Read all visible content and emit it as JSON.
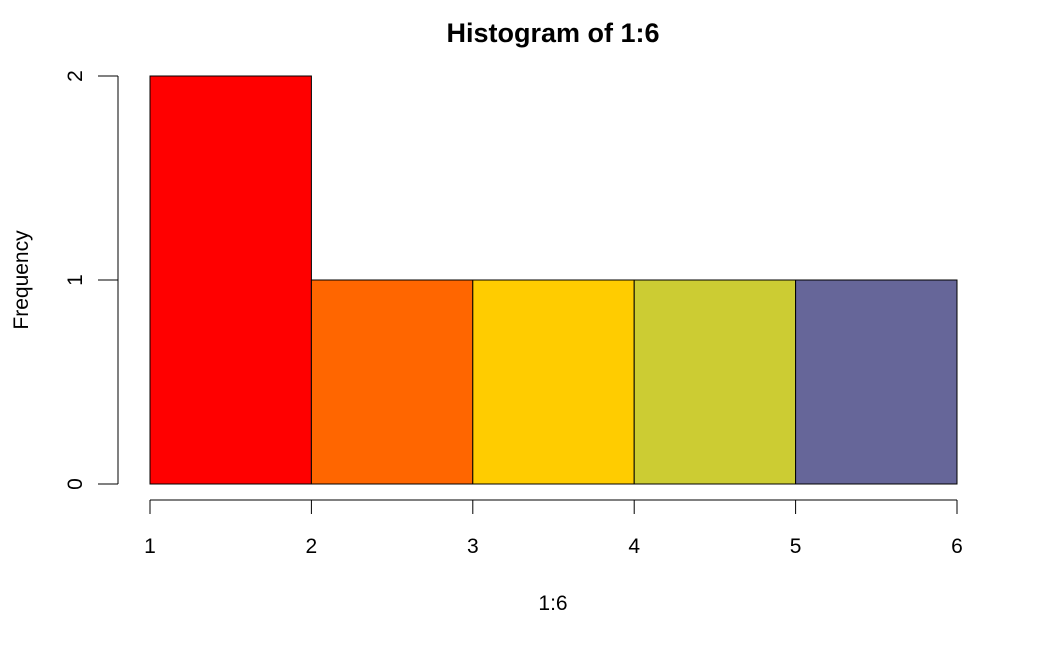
{
  "chart_data": {
    "type": "bar",
    "title": "Histogram of 1:6",
    "xlabel": "1:6",
    "ylabel": "Frequency",
    "bins": [
      {
        "start": 1,
        "end": 2,
        "count": 2,
        "color": "#FF0000"
      },
      {
        "start": 2,
        "end": 3,
        "count": 1,
        "color": "#FF6600"
      },
      {
        "start": 3,
        "end": 4,
        "count": 1,
        "color": "#FFCC00"
      },
      {
        "start": 4,
        "end": 5,
        "count": 1,
        "color": "#CCCC33"
      },
      {
        "start": 5,
        "end": 6,
        "count": 1,
        "color": "#666699"
      }
    ],
    "xlim": [
      1,
      6
    ],
    "ylim": [
      0,
      2
    ],
    "x_ticks": [
      "1",
      "2",
      "3",
      "4",
      "5",
      "6"
    ],
    "y_ticks": [
      "0",
      "1",
      "2"
    ],
    "grid": false,
    "legend": false
  }
}
